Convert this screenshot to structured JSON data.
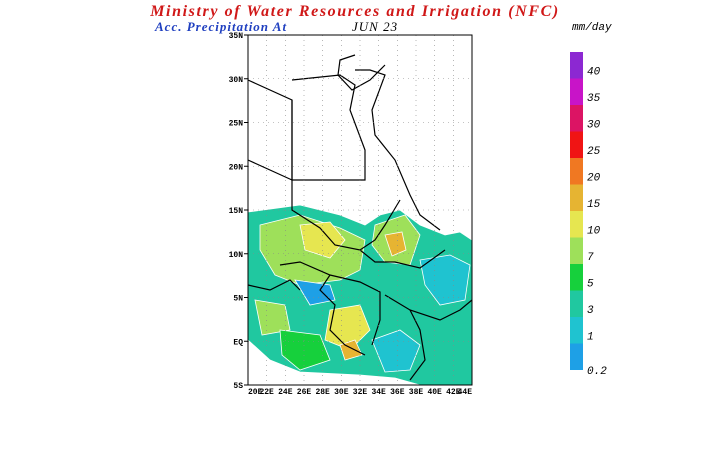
{
  "header": {
    "title": "Ministry of Water Resources and Irrigation (NFC)",
    "subtitle": "Acc. Precipitation  At",
    "date": "JUN 23"
  },
  "map": {
    "lat_labels": [
      "35N",
      "30N",
      "25N",
      "20N",
      "15N",
      "10N",
      "5N",
      "EQ",
      "5S"
    ],
    "lon_labels": [
      "20E",
      "22E",
      "24E",
      "26E",
      "28E",
      "30E",
      "32E",
      "34E",
      "36E",
      "38E",
      "40E",
      "42E",
      "44E"
    ]
  },
  "legend": {
    "unit": "mm/day",
    "labels": [
      "0.2",
      "1",
      "3",
      "5",
      "7",
      "10",
      "15",
      "20",
      "25",
      "30",
      "35",
      "40"
    ],
    "colors": [
      "#1ea0e6",
      "#1fc3d0",
      "#20c8a0",
      "#16d03c",
      "#9ee05a",
      "#e6e650",
      "#e6b432",
      "#f07822",
      "#f01414",
      "#dc1464",
      "#c814c8",
      "#8c28d2"
    ]
  }
}
